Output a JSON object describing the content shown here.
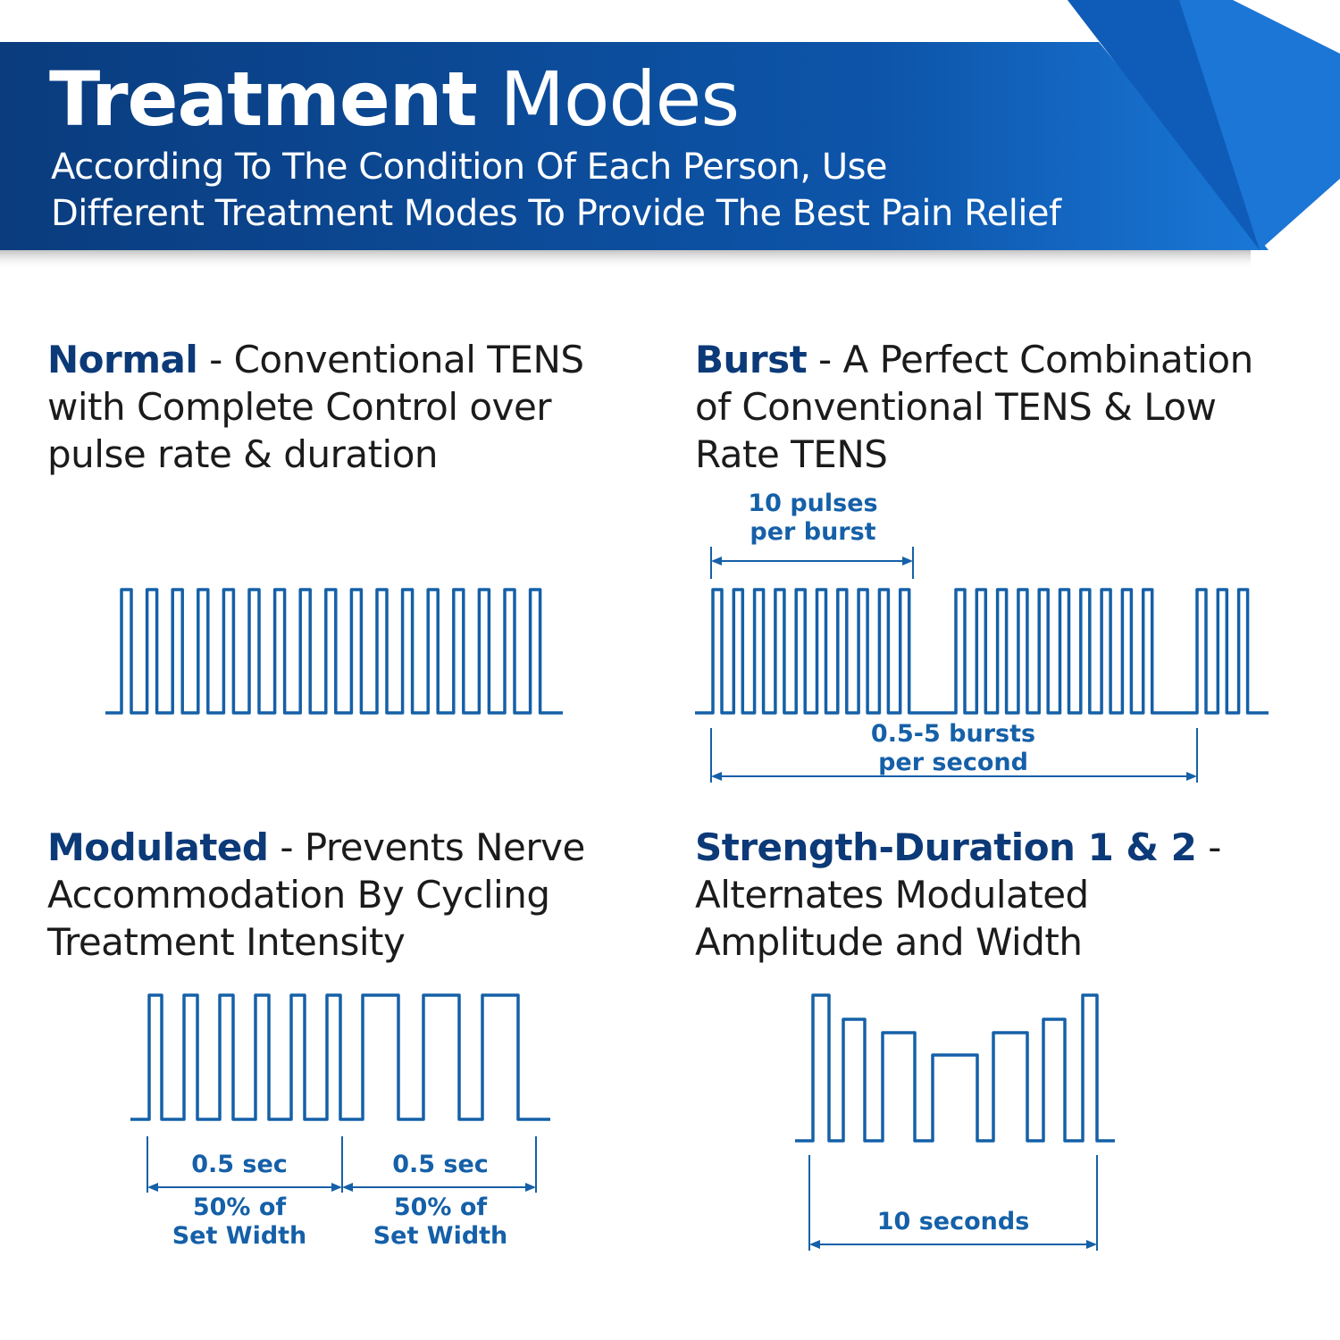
{
  "header": {
    "title_bold": "Treatment",
    "title_light": "Modes",
    "subtitle_line1": "According To The Condition Of Each Person, Use",
    "subtitle_line2": "Different Treatment Modes To Provide The Best Pain Relief"
  },
  "colors": {
    "banner_dark": "#0a3c7e",
    "banner_light": "#1468c8",
    "heading": "#0c3a78",
    "waveform": "#1560a8",
    "text": "#1b1b1b"
  },
  "modes": [
    {
      "name": "Normal",
      "description_lines": [
        " - Conventional TENS",
        "with Complete Control over",
        "pulse rate & duration"
      ]
    },
    {
      "name": "Burst",
      "description_lines": [
        " - A Perfect Combination",
        "of Conventional TENS & Low",
        "Rate TENS"
      ],
      "labels": {
        "pulses": [
          "10 pulses",
          "per burst"
        ],
        "bursts": [
          "0.5-5 bursts",
          "per second"
        ]
      }
    },
    {
      "name": "Modulated",
      "description_lines": [
        " - Prevents Nerve",
        "Accommodation By Cycling",
        "Treatment Intensity"
      ],
      "labels": {
        "left": [
          "0.5 sec",
          "50% of",
          "Set Width"
        ],
        "right": [
          "0.5 sec",
          "50% of",
          "Set Width"
        ]
      }
    },
    {
      "name": "Strength-Duration 1 & 2",
      "description_lines": [
        " -",
        "Alternates Modulated",
        "Amplitude and Width"
      ],
      "labels": {
        "duration": "10 seconds"
      }
    }
  ]
}
